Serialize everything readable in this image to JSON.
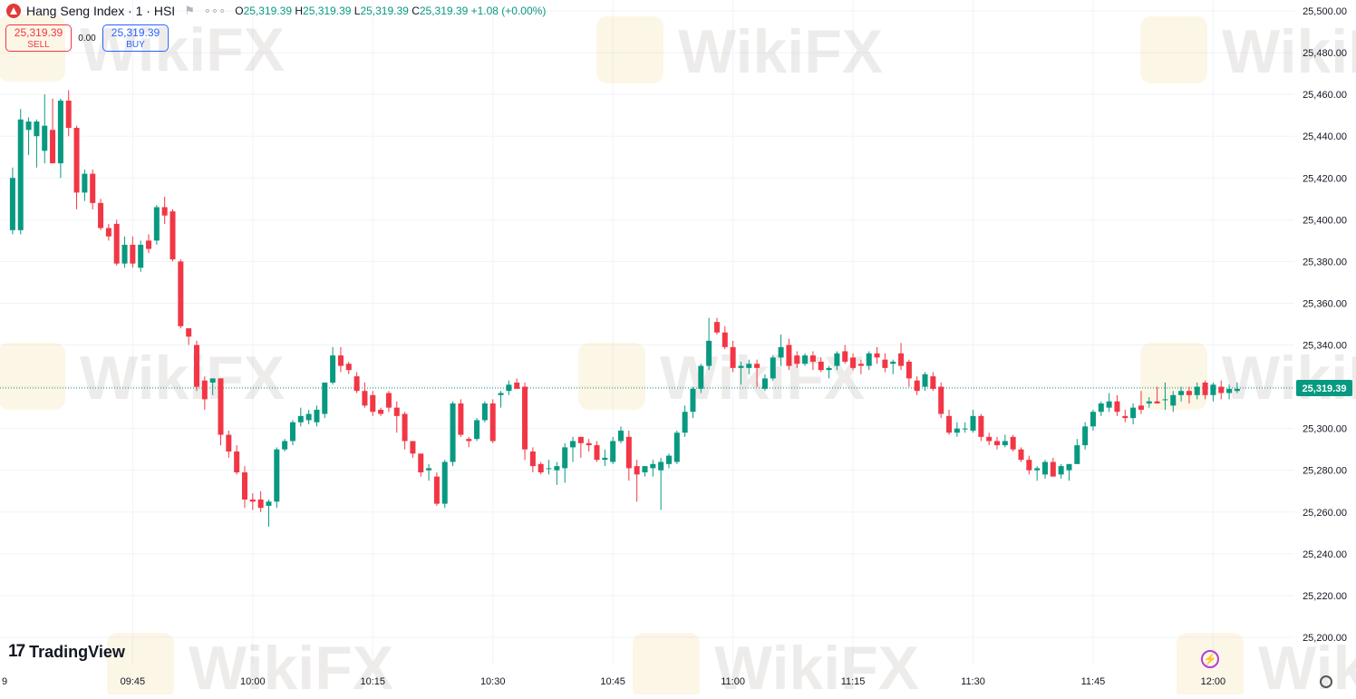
{
  "header": {
    "symbol_title": "Hang Seng Index · 1 · HSI",
    "open_label": "O",
    "open_value": "25,319.39",
    "high_label": "H",
    "high_value": "25,319.39",
    "low_label": "L",
    "low_value": "25,319.39",
    "close_label": "C",
    "close_value": "25,319.39",
    "change": "+1.08 (+0.00%)",
    "more_label": "∘∘∘"
  },
  "trade": {
    "sell_price": "25,319.39",
    "sell_label": "SELL",
    "spread": "0.00",
    "buy_price": "25,319.39",
    "buy_label": "BUY"
  },
  "brand": {
    "logo_mark": "17",
    "logo_name": "TradingView"
  },
  "watermark": "WikiFX",
  "colors": {
    "up": "#089981",
    "down": "#f23645",
    "grid": "#f0f3fa",
    "price_line": "#089981"
  },
  "chart_data": {
    "type": "candlestick",
    "title": "Hang Seng Index · 1 · HSI",
    "ylim": [
      25190,
      25505
    ],
    "yticks": [
      25200,
      25220,
      25240,
      25260,
      25280,
      25300,
      25320,
      25340,
      25360,
      25380,
      25400,
      25420,
      25440,
      25460,
      25480,
      25500
    ],
    "ytick_labels": [
      "25,200.00",
      "25,220.00",
      "25,240.00",
      "25,260.00",
      "25,280.00",
      "25,300.00",
      "25,320.00",
      "25,340.00",
      "25,360.00",
      "25,380.00",
      "25,400.00",
      "25,420.00",
      "25,440.00",
      "25,460.00",
      "25,480.00",
      "25,500.00"
    ],
    "xticks": [
      {
        "label": "9",
        "minute": -4.2
      },
      {
        "label": "09:45",
        "minute": 15
      },
      {
        "label": "10:00",
        "minute": 30
      },
      {
        "label": "10:15",
        "minute": 45
      },
      {
        "label": "10:30",
        "minute": 60
      },
      {
        "label": "10:45",
        "minute": 75
      },
      {
        "label": "11:00",
        "minute": 90
      },
      {
        "label": "11:15",
        "minute": 105
      },
      {
        "label": "11:30",
        "minute": 120
      },
      {
        "label": "11:45",
        "minute": 135
      },
      {
        "label": "12:00",
        "minute": 150
      }
    ],
    "time_origin": "09:30",
    "last_price": 25319.39,
    "last_price_label": "25,319.39",
    "grid": true,
    "candles": [
      {
        "o": 25395,
        "h": 25425,
        "l": 25393,
        "c": 25420
      },
      {
        "o": 25395,
        "h": 25453,
        "l": 25393,
        "c": 25448
      },
      {
        "o": 25443,
        "h": 25449,
        "l": 25431,
        "c": 25447
      },
      {
        "o": 25440,
        "h": 25448,
        "l": 25425,
        "c": 25447
      },
      {
        "o": 25433,
        "h": 25460,
        "l": 25427,
        "c": 25445
      },
      {
        "o": 25443,
        "h": 25458,
        "l": 25430,
        "c": 25427
      },
      {
        "o": 25427,
        "h": 25458,
        "l": 25420,
        "c": 25457
      },
      {
        "o": 25457,
        "h": 25462,
        "l": 25440,
        "c": 25444
      },
      {
        "o": 25444,
        "h": 25445,
        "l": 25405,
        "c": 25413
      },
      {
        "o": 25413,
        "h": 25424,
        "l": 25409,
        "c": 25422
      },
      {
        "o": 25422,
        "h": 25424,
        "l": 25405,
        "c": 25408
      },
      {
        "o": 25408,
        "h": 25410,
        "l": 25395,
        "c": 25396
      },
      {
        "o": 25396,
        "h": 25398,
        "l": 25390,
        "c": 25392
      },
      {
        "o": 25398,
        "h": 25400,
        "l": 25378,
        "c": 25379
      },
      {
        "o": 25379,
        "h": 25392,
        "l": 25377,
        "c": 25388
      },
      {
        "o": 25388,
        "h": 25392,
        "l": 25377,
        "c": 25379
      },
      {
        "o": 25377,
        "h": 25390,
        "l": 25375,
        "c": 25388
      },
      {
        "o": 25390,
        "h": 25393,
        "l": 25384,
        "c": 25386
      },
      {
        "o": 25390,
        "h": 25407,
        "l": 25388,
        "c": 25406
      },
      {
        "o": 25406,
        "h": 25411,
        "l": 25398,
        "c": 25402
      },
      {
        "o": 25404,
        "h": 25405,
        "l": 25380,
        "c": 25381
      },
      {
        "o": 25380,
        "h": 25381,
        "l": 25348,
        "c": 25349
      },
      {
        "o": 25348,
        "h": 25348,
        "l": 25340,
        "c": 25344
      },
      {
        "o": 25340,
        "h": 25342,
        "l": 25318,
        "c": 25320
      },
      {
        "o": 25323,
        "h": 25325,
        "l": 25309,
        "c": 25314
      },
      {
        "o": 25322,
        "h": 25324,
        "l": 25316,
        "c": 25324
      },
      {
        "o": 25324,
        "h": 25324,
        "l": 25292,
        "c": 25297
      },
      {
        "o": 25297,
        "h": 25299,
        "l": 25286,
        "c": 25289
      },
      {
        "o": 25289,
        "h": 25292,
        "l": 25278,
        "c": 25279
      },
      {
        "o": 25279,
        "h": 25282,
        "l": 25262,
        "c": 25266
      },
      {
        "o": 25266,
        "h": 25269,
        "l": 25261,
        "c": 25265
      },
      {
        "o": 25266,
        "h": 25270,
        "l": 25260,
        "c": 25262
      },
      {
        "o": 25263,
        "h": 25266,
        "l": 25253,
        "c": 25265
      },
      {
        "o": 25265,
        "h": 25291,
        "l": 25262,
        "c": 25290
      },
      {
        "o": 25290,
        "h": 25295,
        "l": 25289,
        "c": 25294
      },
      {
        "o": 25294,
        "h": 25304,
        "l": 25292,
        "c": 25303
      },
      {
        "o": 25303,
        "h": 25310,
        "l": 25301,
        "c": 25306
      },
      {
        "o": 25304,
        "h": 25309,
        "l": 25302,
        "c": 25307
      },
      {
        "o": 25303,
        "h": 25311,
        "l": 25301,
        "c": 25309
      },
      {
        "o": 25307,
        "h": 25322,
        "l": 25305,
        "c": 25322
      },
      {
        "o": 25322,
        "h": 25339,
        "l": 25321,
        "c": 25335
      },
      {
        "o": 25335,
        "h": 25339,
        "l": 25327,
        "c": 25330
      },
      {
        "o": 25331,
        "h": 25332,
        "l": 25326,
        "c": 25328
      },
      {
        "o": 25325,
        "h": 25327,
        "l": 25317,
        "c": 25318
      },
      {
        "o": 25318,
        "h": 25322,
        "l": 25310,
        "c": 25311
      },
      {
        "o": 25316,
        "h": 25318,
        "l": 25306,
        "c": 25308
      },
      {
        "o": 25309,
        "h": 25310,
        "l": 25306,
        "c": 25307
      },
      {
        "o": 25317,
        "h": 25318,
        "l": 25308,
        "c": 25310
      },
      {
        "o": 25310,
        "h": 25313,
        "l": 25298,
        "c": 25306
      },
      {
        "o": 25307,
        "h": 25308,
        "l": 25290,
        "c": 25294
      },
      {
        "o": 25294,
        "h": 25294,
        "l": 25286,
        "c": 25288
      },
      {
        "o": 25288,
        "h": 25288,
        "l": 25277,
        "c": 25279
      },
      {
        "o": 25280,
        "h": 25283,
        "l": 25275,
        "c": 25281
      },
      {
        "o": 25277,
        "h": 25279,
        "l": 25263,
        "c": 25264
      },
      {
        "o": 25264,
        "h": 25285,
        "l": 25262,
        "c": 25284
      },
      {
        "o": 25284,
        "h": 25313,
        "l": 25282,
        "c": 25312
      },
      {
        "o": 25312,
        "h": 25314,
        "l": 25296,
        "c": 25297
      },
      {
        "o": 25295,
        "h": 25296,
        "l": 25291,
        "c": 25294
      },
      {
        "o": 25295,
        "h": 25305,
        "l": 25294,
        "c": 25304
      },
      {
        "o": 25304,
        "h": 25313,
        "l": 25303,
        "c": 25312
      },
      {
        "o": 25312,
        "h": 25314,
        "l": 25293,
        "c": 25294
      },
      {
        "o": 25316,
        "h": 25318,
        "l": 25310,
        "c": 25317
      },
      {
        "o": 25318,
        "h": 25323,
        "l": 25316,
        "c": 25321
      },
      {
        "o": 25322,
        "h": 25324,
        "l": 25320,
        "c": 25319
      },
      {
        "o": 25320,
        "h": 25322,
        "l": 25285,
        "c": 25290
      },
      {
        "o": 25289,
        "h": 25291,
        "l": 25279,
        "c": 25282
      },
      {
        "o": 25283,
        "h": 25284,
        "l": 25278,
        "c": 25279
      },
      {
        "o": 25281,
        "h": 25285,
        "l": 25278,
        "c": 25281
      },
      {
        "o": 25280,
        "h": 25284,
        "l": 25273,
        "c": 25282
      },
      {
        "o": 25281,
        "h": 25293,
        "l": 25274,
        "c": 25291
      },
      {
        "o": 25291,
        "h": 25296,
        "l": 25284,
        "c": 25294
      },
      {
        "o": 25296,
        "h": 25296,
        "l": 25286,
        "c": 25293
      },
      {
        "o": 25293,
        "h": 25295,
        "l": 25289,
        "c": 25292
      },
      {
        "o": 25292,
        "h": 25294,
        "l": 25284,
        "c": 25285
      },
      {
        "o": 25285,
        "h": 25290,
        "l": 25282,
        "c": 25286
      },
      {
        "o": 25284,
        "h": 25296,
        "l": 25283,
        "c": 25294
      },
      {
        "o": 25294,
        "h": 25301,
        "l": 25293,
        "c": 25299
      },
      {
        "o": 25296,
        "h": 25299,
        "l": 25275,
        "c": 25281
      },
      {
        "o": 25282,
        "h": 25285,
        "l": 25265,
        "c": 25278
      },
      {
        "o": 25279,
        "h": 25282,
        "l": 25277,
        "c": 25282
      },
      {
        "o": 25281,
        "h": 25285,
        "l": 25277,
        "c": 25283
      },
      {
        "o": 25280,
        "h": 25286,
        "l": 25261,
        "c": 25284
      },
      {
        "o": 25283,
        "h": 25288,
        "l": 25281,
        "c": 25287
      },
      {
        "o": 25284,
        "h": 25299,
        "l": 25283,
        "c": 25298
      },
      {
        "o": 25298,
        "h": 25311,
        "l": 25296,
        "c": 25308
      },
      {
        "o": 25308,
        "h": 25320,
        "l": 25305,
        "c": 25319
      },
      {
        "o": 25319,
        "h": 25331,
        "l": 25317,
        "c": 25330
      },
      {
        "o": 25330,
        "h": 25353,
        "l": 25328,
        "c": 25342
      },
      {
        "o": 25351,
        "h": 25353,
        "l": 25345,
        "c": 25346
      },
      {
        "o": 25346,
        "h": 25349,
        "l": 25338,
        "c": 25339
      },
      {
        "o": 25339,
        "h": 25342,
        "l": 25327,
        "c": 25329
      },
      {
        "o": 25329,
        "h": 25332,
        "l": 25321,
        "c": 25330
      },
      {
        "o": 25329,
        "h": 25333,
        "l": 25326,
        "c": 25331
      },
      {
        "o": 25331,
        "h": 25333,
        "l": 25320,
        "c": 25329
      },
      {
        "o": 25319,
        "h": 25326,
        "l": 25318,
        "c": 25324
      },
      {
        "o": 25324,
        "h": 25335,
        "l": 25323,
        "c": 25334
      },
      {
        "o": 25334,
        "h": 25345,
        "l": 25330,
        "c": 25339
      },
      {
        "o": 25340,
        "h": 25343,
        "l": 25328,
        "c": 25330
      },
      {
        "o": 25335,
        "h": 25337,
        "l": 25329,
        "c": 25331
      },
      {
        "o": 25331,
        "h": 25336,
        "l": 25330,
        "c": 25335
      },
      {
        "o": 25335,
        "h": 25337,
        "l": 25328,
        "c": 25332
      },
      {
        "o": 25332,
        "h": 25334,
        "l": 25327,
        "c": 25328
      },
      {
        "o": 25328,
        "h": 25330,
        "l": 25324,
        "c": 25329
      },
      {
        "o": 25330,
        "h": 25337,
        "l": 25328,
        "c": 25336
      },
      {
        "o": 25337,
        "h": 25340,
        "l": 25331,
        "c": 25332
      },
      {
        "o": 25334,
        "h": 25336,
        "l": 25328,
        "c": 25329
      },
      {
        "o": 25331,
        "h": 25333,
        "l": 25326,
        "c": 25330
      },
      {
        "o": 25330,
        "h": 25337,
        "l": 25328,
        "c": 25336
      },
      {
        "o": 25336,
        "h": 25339,
        "l": 25331,
        "c": 25334
      },
      {
        "o": 25333,
        "h": 25336,
        "l": 25327,
        "c": 25329
      },
      {
        "o": 25331,
        "h": 25333,
        "l": 25326,
        "c": 25332
      },
      {
        "o": 25336,
        "h": 25341,
        "l": 25328,
        "c": 25330
      },
      {
        "o": 25332,
        "h": 25333,
        "l": 25320,
        "c": 25324
      },
      {
        "o": 25323,
        "h": 25325,
        "l": 25316,
        "c": 25318
      },
      {
        "o": 25320,
        "h": 25327,
        "l": 25318,
        "c": 25326
      },
      {
        "o": 25325,
        "h": 25327,
        "l": 25318,
        "c": 25319
      },
      {
        "o": 25320,
        "h": 25322,
        "l": 25305,
        "c": 25307
      },
      {
        "o": 25306,
        "h": 25309,
        "l": 25297,
        "c": 25298
      },
      {
        "o": 25298,
        "h": 25303,
        "l": 25296,
        "c": 25300
      },
      {
        "o": 25300,
        "h": 25303,
        "l": 25298,
        "c": 25300
      },
      {
        "o": 25299,
        "h": 25309,
        "l": 25298,
        "c": 25306
      },
      {
        "o": 25306,
        "h": 25307,
        "l": 25294,
        "c": 25296
      },
      {
        "o": 25296,
        "h": 25298,
        "l": 25292,
        "c": 25294
      },
      {
        "o": 25294,
        "h": 25296,
        "l": 25290,
        "c": 25292
      },
      {
        "o": 25292,
        "h": 25297,
        "l": 25291,
        "c": 25294
      },
      {
        "o": 25296,
        "h": 25297,
        "l": 25289,
        "c": 25290
      },
      {
        "o": 25290,
        "h": 25291,
        "l": 25284,
        "c": 25285
      },
      {
        "o": 25285,
        "h": 25287,
        "l": 25278,
        "c": 25280
      },
      {
        "o": 25280,
        "h": 25282,
        "l": 25275,
        "c": 25281
      },
      {
        "o": 25278,
        "h": 25285,
        "l": 25276,
        "c": 25284
      },
      {
        "o": 25284,
        "h": 25286,
        "l": 25277,
        "c": 25277
      },
      {
        "o": 25278,
        "h": 25283,
        "l": 25276,
        "c": 25282
      },
      {
        "o": 25280,
        "h": 25282,
        "l": 25275,
        "c": 25283
      },
      {
        "o": 25283,
        "h": 25295,
        "l": 25283,
        "c": 25292
      },
      {
        "o": 25292,
        "h": 25303,
        "l": 25290,
        "c": 25301
      },
      {
        "o": 25301,
        "h": 25309,
        "l": 25299,
        "c": 25308
      },
      {
        "o": 25308,
        "h": 25313,
        "l": 25306,
        "c": 25312
      },
      {
        "o": 25310,
        "h": 25317,
        "l": 25308,
        "c": 25313
      },
      {
        "o": 25313,
        "h": 25316,
        "l": 25306,
        "c": 25308
      },
      {
        "o": 25306,
        "h": 25309,
        "l": 25303,
        "c": 25305
      },
      {
        "o": 25305,
        "h": 25312,
        "l": 25302,
        "c": 25310
      },
      {
        "o": 25311,
        "h": 25318,
        "l": 25307,
        "c": 25309
      },
      {
        "o": 25312,
        "h": 25315,
        "l": 25310,
        "c": 25313
      },
      {
        "o": 25313,
        "h": 25320,
        "l": 25312,
        "c": 25312
      },
      {
        "o": 25314,
        "h": 25322,
        "l": 25309,
        "c": 25314
      },
      {
        "o": 25311,
        "h": 25318,
        "l": 25308,
        "c": 25316
      },
      {
        "o": 25316,
        "h": 25320,
        "l": 25313,
        "c": 25318
      },
      {
        "o": 25318,
        "h": 25320,
        "l": 25312,
        "c": 25316
      },
      {
        "o": 25316,
        "h": 25322,
        "l": 25314,
        "c": 25320
      },
      {
        "o": 25322,
        "h": 25323,
        "l": 25314,
        "c": 25316
      },
      {
        "o": 25316,
        "h": 25322,
        "l": 25313,
        "c": 25321
      },
      {
        "o": 25320,
        "h": 25323,
        "l": 25314,
        "c": 25317
      },
      {
        "o": 25317,
        "h": 25321,
        "l": 25314,
        "c": 25319
      },
      {
        "o": 25318,
        "h": 25322,
        "l": 25317,
        "c": 25319
      }
    ]
  }
}
